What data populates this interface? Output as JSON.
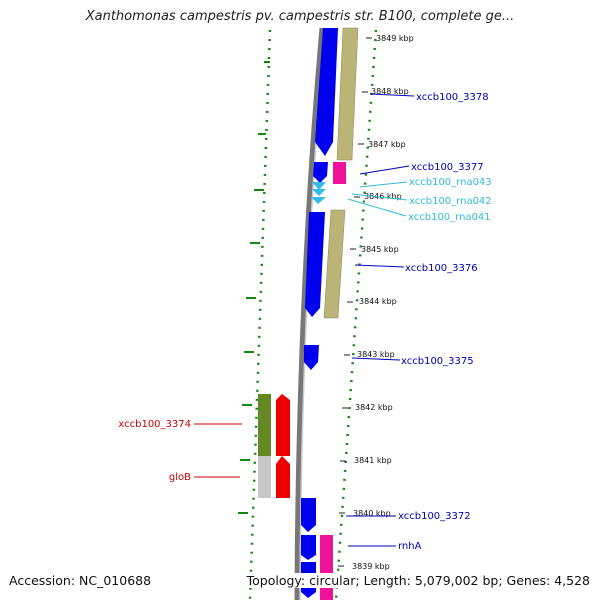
{
  "header": {
    "title": "Xanthomonas campestris pv. campestris str. B100, complete ge..."
  },
  "footer": {
    "accession": "Accession: NC_010688",
    "summary": "Topology: circular; Length: 5,079,002 bp; Genes: 4,528"
  },
  "ruler": {
    "ticks": [
      {
        "label": "3849 kbp"
      },
      {
        "label": "3848 kbp"
      },
      {
        "label": "3847 kbp"
      },
      {
        "label": "3846 kbp"
      },
      {
        "label": "3845 kbp"
      },
      {
        "label": "3844 kbp"
      },
      {
        "label": "3843 kbp"
      },
      {
        "label": "3842 kbp"
      },
      {
        "label": "3841 kbp"
      },
      {
        "label": "3840 kbp"
      },
      {
        "label": "3839 kbp"
      }
    ]
  },
  "features": {
    "labels": [
      {
        "text": "xccb100_3378",
        "color": "#0000b4"
      },
      {
        "text": "xccb100_3377",
        "color": "#0000b4"
      },
      {
        "text": "xccb100_rna043",
        "color": "#33bbdd"
      },
      {
        "text": "xccb100_rna042",
        "color": "#33bbdd"
      },
      {
        "text": "xccb100_rna041",
        "color": "#33bbdd"
      },
      {
        "text": "xccb100_3376",
        "color": "#0000b4"
      },
      {
        "text": "xccb100_3375",
        "color": "#0000b4"
      },
      {
        "text": "xccb100_3374",
        "color": "#cc0000"
      },
      {
        "text": "gloB",
        "color": "#cc0000"
      },
      {
        "text": "xccb100_3372",
        "color": "#0000b4"
      },
      {
        "text": "rnhA",
        "color": "#0000b4"
      }
    ]
  },
  "colors": {
    "cds_forward": "#0000ee",
    "cds_reverse": "#ee0000",
    "rna": "#33bbee",
    "gene_forward_shadow": "#bbb477",
    "gene_reverse_shadow": "#668822",
    "pink_track": "#ee1199",
    "backbone": "#777777",
    "gc_skew": "#118811"
  }
}
